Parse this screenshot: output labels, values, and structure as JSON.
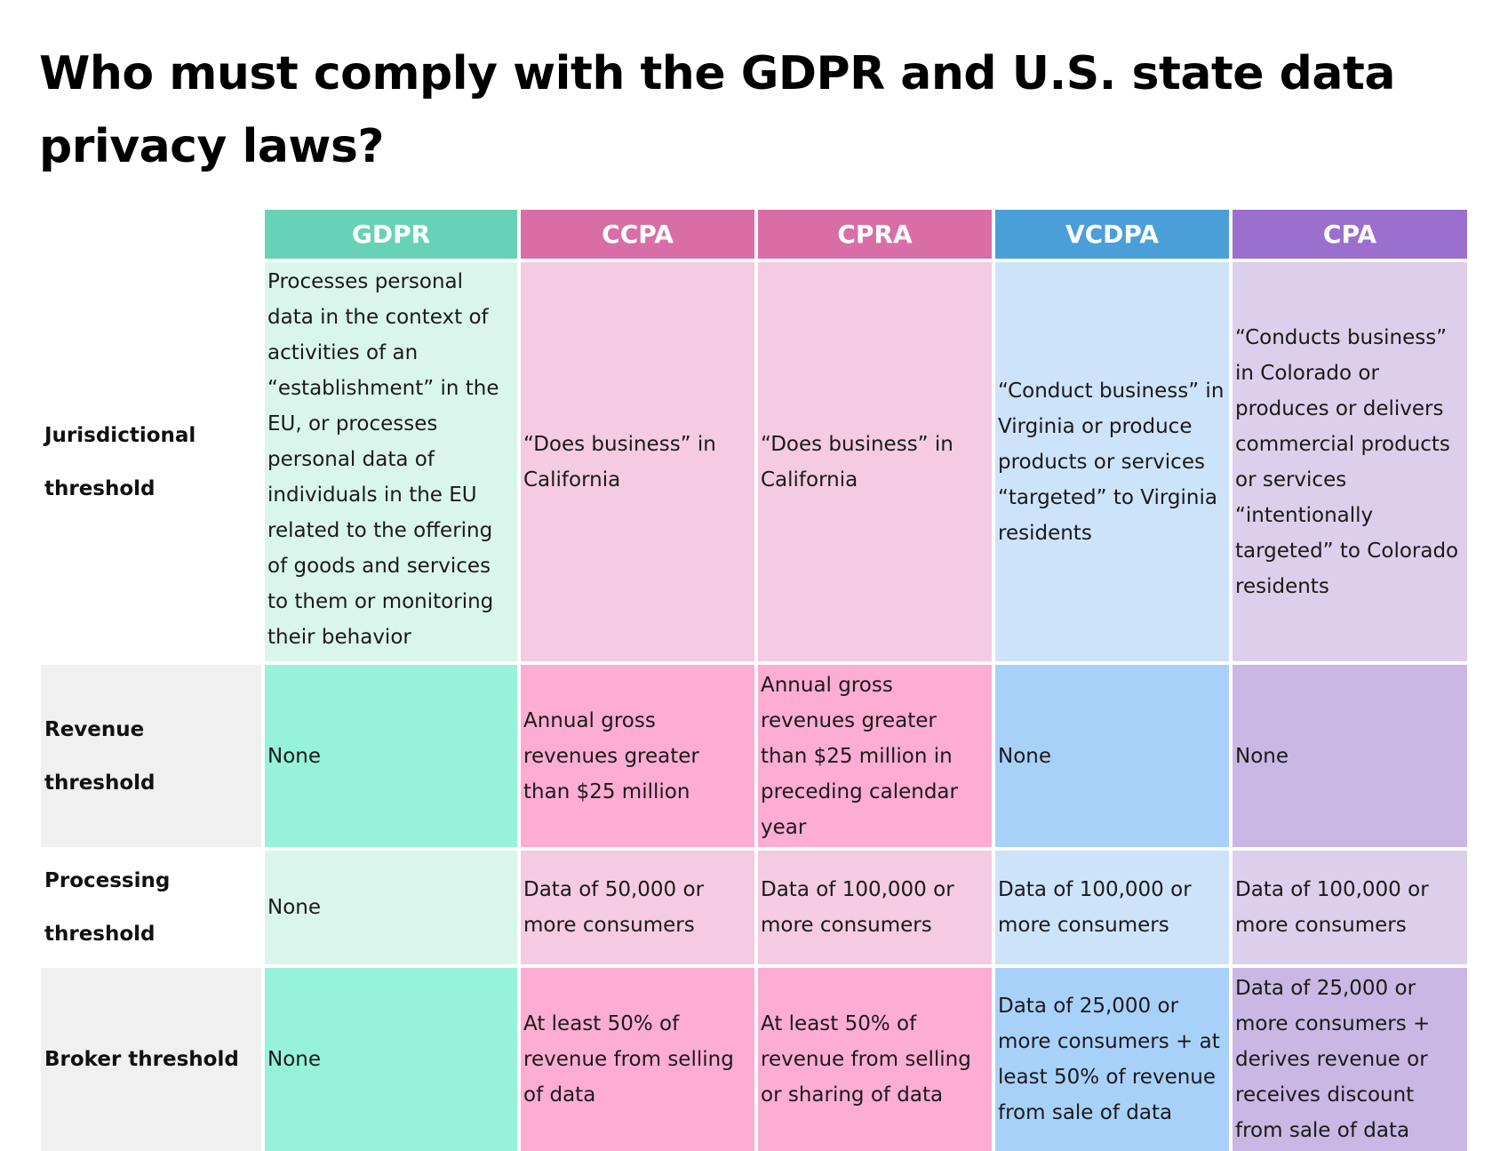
{
  "title": "Who must comply with the GDPR and U.S. state data privacy laws?",
  "colors": {
    "gdpr_header": "#67D2B6",
    "gdpr_light": "#DAF6EC",
    "gdpr_strong": "#97F2DA",
    "ccpa_header": "#D96EA7",
    "ccpa_light": "#F4CBE0",
    "ccpa_strong": "#FDACD2",
    "cpra_header": "#D96EA7",
    "cpra_light": "#F4CBE0",
    "cpra_strong": "#FDACD2",
    "vcdpa_header": "#4A9FD9",
    "vcdpa_light": "#CDE3F9",
    "vcdpa_strong": "#A8D1FA",
    "cpa_header": "#9A6FCD",
    "cpa_light": "#DCCFEB",
    "cpa_strong": "#CAB7E3",
    "row_label_shade": "#F0F0F0"
  },
  "table": {
    "columns": [
      "GDPR",
      "CCPA",
      "CPRA",
      "VCDPA",
      "CPA"
    ],
    "rows": [
      {
        "label": "Jurisdictional threshold",
        "cells": [
          "Processes personal data in the context of activities of an “establishment” in the EU, or processes personal data of individuals in the EU related to the offering of goods and services to them or monitoring their behavior",
          "“Does business” in California",
          "“Does business” in California",
          "“Conduct business” in Virginia or produce products or services “targeted” to Virginia residents",
          "“Conducts business” in Colorado or produces or delivers commercial products or services “intentionally targeted” to Colorado residents"
        ]
      },
      {
        "label": "Revenue threshold",
        "cells": [
          "None",
          "Annual gross revenues greater than $25 million",
          "Annual gross revenues greater than $25 million in preceding calendar year",
          "None",
          "None"
        ]
      },
      {
        "label": "Processing threshold",
        "cells": [
          "None",
          "Data of 50,000 or more consumers",
          "Data of 100,000 or more consumers",
          "Data of 100,000 or more consumers",
          "Data of 100,000 or more consumers"
        ]
      },
      {
        "label": "Broker threshold",
        "cells": [
          "None",
          "At least 50% of revenue from selling of data",
          "At least 50% of revenue from selling or sharing of data",
          "Data of 25,000 or more consumers + at least 50% of revenue from sale of data",
          "Data of 25,000 or more consumers + derives revenue or receives discount from sale of data"
        ]
      }
    ]
  }
}
